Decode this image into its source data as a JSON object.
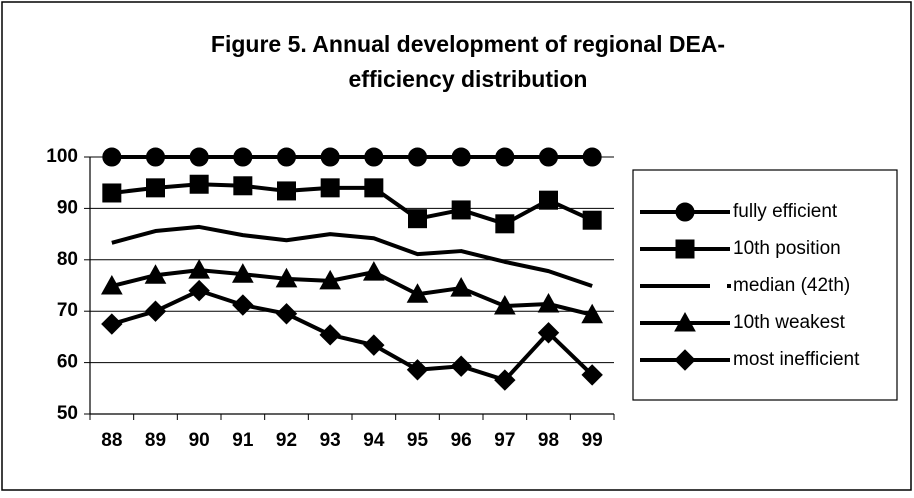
{
  "chart_data": {
    "type": "line",
    "title": [
      "Figure 5. Annual development of regional DEA-",
      "efficiency distribution"
    ],
    "categories": [
      "88",
      "89",
      "90",
      "91",
      "92",
      "93",
      "94",
      "95",
      "96",
      "97",
      "98",
      "99"
    ],
    "series": [
      {
        "name": "fully efficient",
        "color": "#000000",
        "marker": "circle",
        "values": [
          100,
          100,
          100,
          100,
          100,
          100,
          100,
          100,
          100,
          100,
          100,
          100
        ]
      },
      {
        "name": "10th position",
        "color": "#000000",
        "marker": "square",
        "values": [
          93,
          94,
          94.7,
          94.4,
          93.4,
          94,
          94,
          88,
          89.7,
          87,
          91.6,
          87.7
        ]
      },
      {
        "name": "median (42th)",
        "color": "#000000",
        "marker": "none",
        "values": [
          83.3,
          85.6,
          86.4,
          84.8,
          83.8,
          85,
          84.2,
          81.1,
          81.7,
          79.6,
          77.8,
          74.9
        ]
      },
      {
        "name": "10th weakest",
        "color": "#000000",
        "marker": "triangle",
        "values": [
          74.9,
          77,
          78,
          77.2,
          76.3,
          75.9,
          77.6,
          73.3,
          74.5,
          71,
          71.4,
          69.3
        ]
      },
      {
        "name": "most inefficient",
        "color": "#000000",
        "marker": "diamond",
        "values": [
          67.5,
          70,
          74,
          71.2,
          69.5,
          65.4,
          63.4,
          58.6,
          59.3,
          56.6,
          65.8,
          57.6
        ]
      }
    ],
    "ylim": [
      50,
      100
    ],
    "yticks": [
      50,
      60,
      70,
      80,
      90,
      100
    ],
    "grid": true,
    "legend": "right"
  }
}
